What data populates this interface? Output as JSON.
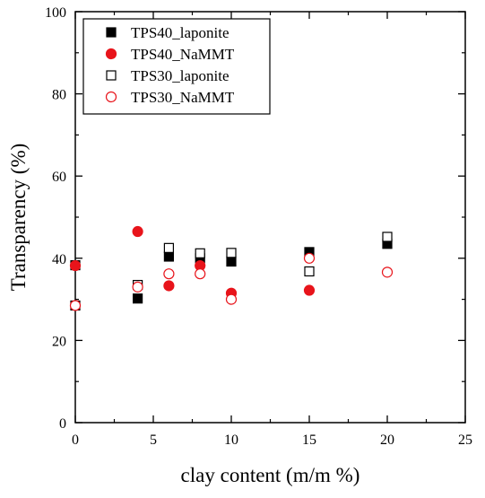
{
  "chart_data": {
    "type": "scatter",
    "title": "",
    "xlabel": "clay content (m/m %)",
    "ylabel": "Transparency (%)",
    "xlim": [
      0,
      25
    ],
    "ylim": [
      0,
      100
    ],
    "xticks": [
      0,
      5,
      10,
      15,
      20,
      25
    ],
    "yticks": [
      0,
      20,
      40,
      60,
      80,
      100
    ],
    "grid": false,
    "legend_position": "top-left",
    "series": [
      {
        "name": "TPS40_laponite",
        "marker": "square",
        "filled": true,
        "color": "#000000",
        "x": [
          0,
          4,
          6,
          8,
          10,
          15,
          20
        ],
        "y": [
          38.3,
          30.2,
          40.4,
          40.0,
          39.2,
          41.5,
          43.5
        ]
      },
      {
        "name": "TPS40_NaMMT",
        "marker": "circle",
        "filled": true,
        "color": "#e8141b",
        "x": [
          0,
          4,
          6,
          8,
          10,
          15
        ],
        "y": [
          38.2,
          46.5,
          33.3,
          38.2,
          31.5,
          32.2
        ]
      },
      {
        "name": "TPS30_laponite",
        "marker": "square",
        "filled": false,
        "color": "#000000",
        "x": [
          0,
          4,
          6,
          8,
          10,
          15,
          20
        ],
        "y": [
          28.5,
          33.5,
          42.5,
          41.2,
          41.3,
          36.8,
          45.2
        ]
      },
      {
        "name": "TPS30_NaMMT",
        "marker": "circle",
        "filled": false,
        "color": "#e8141b",
        "x": [
          0,
          4,
          6,
          8,
          10,
          15,
          20
        ],
        "y": [
          28.5,
          33.0,
          36.2,
          36.2,
          30.0,
          40.0,
          36.6
        ]
      }
    ]
  }
}
